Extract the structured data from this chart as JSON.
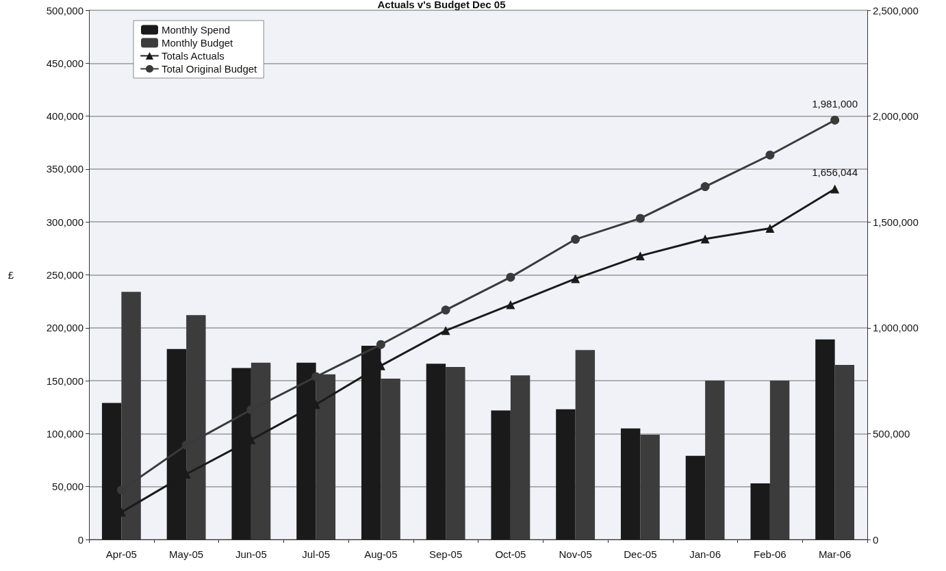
{
  "chart_data": {
    "type": "bar",
    "title": "Actuals v's Budget Dec 05",
    "ylabel": "£",
    "categories": [
      "Apr-05",
      "May-05",
      "Jun-05",
      "Jul-05",
      "Aug-05",
      "Sep-05",
      "Oct-05",
      "Nov-05",
      "Dec-05",
      "Jan-06",
      "Feb-06",
      "Mar-06"
    ],
    "series": [
      {
        "name": "Monthly Spend",
        "color": "#1a1a1a",
        "values": [
          129000,
          180000,
          162000,
          167000,
          183000,
          166000,
          122000,
          123000,
          105000,
          79000,
          53000,
          189000
        ]
      },
      {
        "name": "Monthly Budget",
        "color": "#3c3c3c",
        "values": [
          234000,
          212000,
          167000,
          156000,
          152000,
          163000,
          155000,
          179000,
          99000,
          150000,
          150000,
          165000
        ]
      },
      {
        "name": "Totals Actuals",
        "type": "line",
        "axis": "y2",
        "marker": "triangle",
        "color": "#1a1a1a",
        "values": [
          129000,
          309000,
          471000,
          638000,
          821000,
          987000,
          1109000,
          1232000,
          1340000,
          1420000,
          1470000,
          1656044
        ],
        "value_labels": [
          null,
          null,
          null,
          null,
          null,
          null,
          null,
          null,
          null,
          null,
          null,
          "1,656,044"
        ]
      },
      {
        "name": "Total Original Budget",
        "type": "line",
        "axis": "y2",
        "marker": "circle",
        "color": "#3a3a3a",
        "values": [
          234000,
          446000,
          613000,
          769000,
          921000,
          1084000,
          1239000,
          1418000,
          1517000,
          1667000,
          1816000,
          1981000
        ],
        "value_labels": [
          null,
          null,
          null,
          null,
          null,
          null,
          null,
          null,
          null,
          null,
          null,
          "1,981,000"
        ]
      }
    ],
    "ylim": [
      0,
      500000
    ],
    "yticks": [
      0,
      {
        "value": 50000,
        "label": "50,000"
      },
      {
        "value": 100000,
        "label": "100,000"
      },
      {
        "value": 150000,
        "label": "150,000"
      },
      {
        "value": 200000,
        "label": "200,000"
      },
      {
        "value": 250000,
        "label": "250,000"
      },
      {
        "value": 300000,
        "label": "300,000"
      },
      {
        "value": 350000,
        "label": "350,000"
      },
      {
        "value": 400000,
        "label": "400,000"
      },
      {
        "value": 450000,
        "label": "450,000"
      },
      {
        "value": 500000,
        "label": "500,000"
      }
    ],
    "y2lim": [
      0,
      2500000
    ],
    "y2ticks": [
      0,
      {
        "value": 500000,
        "label": "500,000"
      },
      {
        "value": 1000000,
        "label": "1,000,000"
      },
      {
        "value": 1500000,
        "label": "1,500,000"
      },
      {
        "value": 2000000,
        "label": "2,000,000"
      },
      {
        "value": 2500000,
        "label": "2,500,000"
      }
    ],
    "grid": "y",
    "legend": "top left",
    "line_style": "solid"
  }
}
